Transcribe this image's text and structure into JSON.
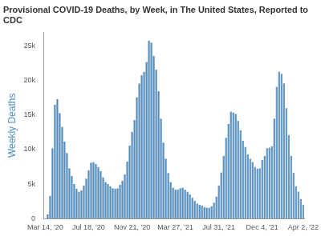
{
  "chart_data": {
    "type": "bar",
    "title": "Provisional COVID-19 Deaths, by Week, in The United States, Reported to CDC",
    "y_label": "Weekly Deaths",
    "categories": [
      "Mar 14, '20",
      null,
      null,
      null,
      null,
      null,
      null,
      null,
      null,
      null,
      null,
      null,
      null,
      null,
      null,
      null,
      null,
      null,
      "Jul 18, '20",
      null,
      null,
      null,
      null,
      null,
      null,
      null,
      null,
      null,
      null,
      null,
      null,
      null,
      null,
      null,
      null,
      null,
      "Nov 21, '20",
      null,
      null,
      null,
      null,
      null,
      null,
      null,
      null,
      null,
      null,
      null,
      null,
      null,
      null,
      null,
      null,
      null,
      "Mar 27, '21",
      null,
      null,
      null,
      null,
      null,
      null,
      null,
      null,
      null,
      null,
      null,
      null,
      null,
      null,
      null,
      null,
      null,
      "Jul 31, '21",
      null,
      null,
      null,
      null,
      null,
      null,
      null,
      null,
      null,
      null,
      null,
      null,
      null,
      null,
      null,
      null,
      null,
      "Dec 4, '21",
      null,
      null,
      null,
      null,
      null,
      null,
      null,
      null,
      null,
      null,
      null,
      null,
      null,
      null,
      null,
      null,
      "Apr 2, '22"
    ],
    "values": [
      60,
      600,
      3300,
      10200,
      16500,
      17300,
      15300,
      13300,
      11200,
      9500,
      7300,
      6200,
      5000,
      4300,
      3900,
      4100,
      4800,
      5800,
      7000,
      8100,
      8200,
      7900,
      7500,
      6900,
      6000,
      5300,
      5000,
      4700,
      4400,
      4300,
      4400,
      4900,
      5500,
      6400,
      8300,
      10600,
      12600,
      14300,
      17600,
      19600,
      20800,
      21300,
      22700,
      25800,
      25500,
      23600,
      21600,
      18500,
      14500,
      11000,
      8700,
      6600,
      5300,
      4500,
      4200,
      4200,
      4400,
      4500,
      4200,
      3900,
      3500,
      3000,
      2600,
      2200,
      2000,
      1900,
      1700,
      1600,
      1600,
      1800,
      2300,
      3200,
      4800,
      6700,
      9100,
      11700,
      13700,
      15500,
      15400,
      15200,
      14200,
      12800,
      11300,
      10400,
      9300,
      8700,
      8200,
      7500,
      7200,
      7300,
      8500,
      9100,
      10200,
      10300,
      10500,
      14500,
      19100,
      21300,
      21000,
      19600,
      16000,
      12100,
      9100,
      6600,
      4700,
      3900,
      2800,
      2000
    ],
    "color": "#4f8fc4",
    "ylim": [
      0,
      27000
    ],
    "yticks": [
      0,
      {
        "value": 5000,
        "label": "5k"
      },
      {
        "value": 10000,
        "label": "10k"
      },
      {
        "value": 15000,
        "label": "15k"
      },
      {
        "value": 20000,
        "label": "20k"
      },
      {
        "value": 25000,
        "label": "25k"
      }
    ],
    "grid": false
  }
}
